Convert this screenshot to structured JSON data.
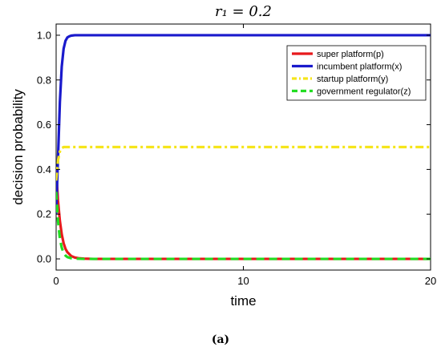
{
  "chart_data": {
    "type": "line",
    "title": "r₁ = 0.2",
    "xlabel": "time",
    "ylabel": "decision probability",
    "xlim": [
      0,
      20
    ],
    "ylim": [
      -0.05,
      1.05
    ],
    "x_ticks": [
      0,
      10,
      20
    ],
    "y_ticks": [
      0.0,
      0.2,
      0.4,
      0.6,
      0.8,
      1.0
    ],
    "x_tick_labels": [
      "0",
      "10",
      "20"
    ],
    "y_tick_labels": [
      "0.0",
      "0.2",
      "0.4",
      "0.6",
      "0.8",
      "1.0"
    ],
    "grid": false,
    "legend_position": "top-right",
    "series": [
      {
        "name": "super platform(p)",
        "color": "#e8191c",
        "style": "solid",
        "x": [
          0,
          0.1,
          0.2,
          0.3,
          0.4,
          0.5,
          0.6,
          0.8,
          1.0,
          1.2,
          1.5,
          2,
          5,
          10,
          20
        ],
        "y": [
          0.4,
          0.26,
          0.17,
          0.11,
          0.07,
          0.045,
          0.03,
          0.013,
          0.006,
          0.003,
          0.001,
          0.0,
          0.0,
          0.0,
          0.0
        ]
      },
      {
        "name": "incumbent platform(x)",
        "color": "#1a1acc",
        "style": "solid",
        "x": [
          0,
          0.1,
          0.2,
          0.3,
          0.4,
          0.5,
          0.6,
          0.7,
          0.8,
          1.0,
          1.2,
          1.5,
          2,
          5,
          10,
          20
        ],
        "y": [
          0.2,
          0.45,
          0.7,
          0.86,
          0.94,
          0.975,
          0.99,
          0.995,
          0.998,
          1.0,
          1.0,
          1.0,
          1.0,
          1.0,
          1.0,
          1.0
        ]
      },
      {
        "name": "startup platform(y)",
        "color": "#f5e51b",
        "style": "dashdot",
        "x": [
          0,
          0.1,
          0.2,
          0.3,
          0.4,
          0.5,
          0.7,
          1.0,
          2,
          5,
          10,
          20
        ],
        "y": [
          0.35,
          0.44,
          0.48,
          0.495,
          0.5,
          0.5,
          0.5,
          0.5,
          0.5,
          0.5,
          0.5,
          0.5
        ]
      },
      {
        "name": "government regulator(z)",
        "color": "#22dd22",
        "style": "dashed",
        "x": [
          0,
          0.1,
          0.2,
          0.3,
          0.4,
          0.5,
          0.6,
          0.8,
          1.0,
          1.5,
          2,
          5,
          10,
          20
        ],
        "y": [
          0.3,
          0.17,
          0.09,
          0.05,
          0.027,
          0.015,
          0.008,
          0.003,
          0.001,
          0.0,
          0.0,
          0.0,
          0.0,
          0.0
        ]
      }
    ]
  },
  "caption": "(a)"
}
